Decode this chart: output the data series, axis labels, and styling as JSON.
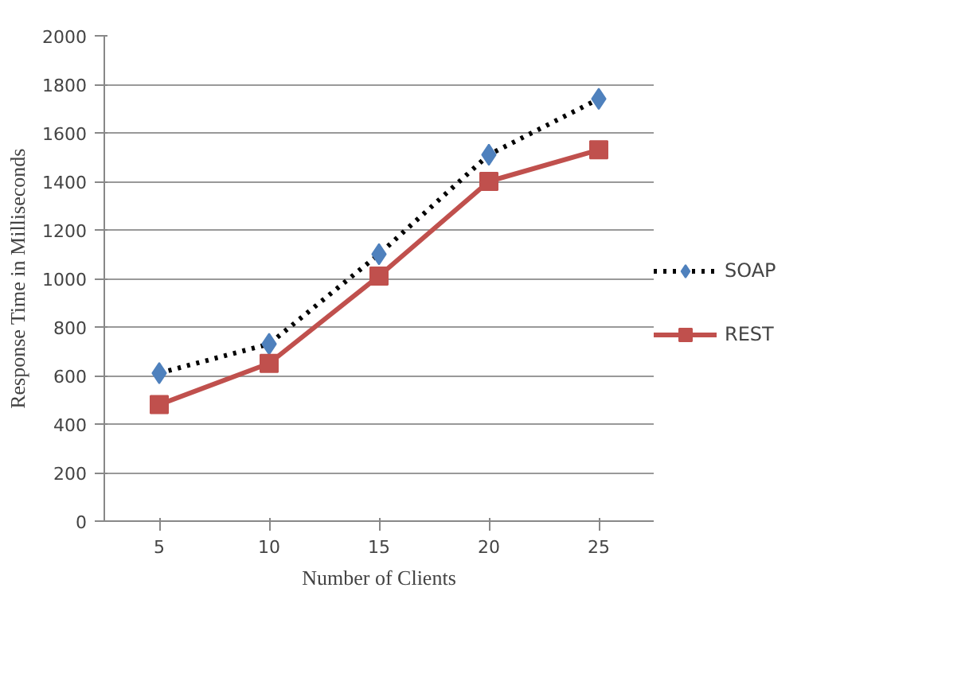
{
  "chart_data": {
    "type": "line",
    "xlabel": "Number of Clients",
    "ylabel": "Response Time in Milliseconds",
    "categories": [
      "5",
      "10",
      "15",
      "20",
      "25"
    ],
    "series": [
      {
        "name": "SOAP",
        "color": "#000000",
        "colors": [
          "#4f81bd",
          "#4f81bd",
          "#4f81bd",
          "#4f81bd",
          "#4f81bd"
        ],
        "line_style": "dotted",
        "marker": "diamond",
        "values": [
          610,
          730,
          1100,
          1510,
          1740
        ]
      },
      {
        "name": "REST",
        "color": "#c0504d",
        "line_style": "solid",
        "marker": "square",
        "values": [
          480,
          650,
          1010,
          1400,
          1530
        ]
      }
    ],
    "ylim": [
      0,
      2000
    ],
    "yticks": [
      0,
      200,
      400,
      600,
      800,
      1000,
      1200,
      1400,
      1600,
      1800,
      2000
    ],
    "grid": "y",
    "legend": "right"
  }
}
